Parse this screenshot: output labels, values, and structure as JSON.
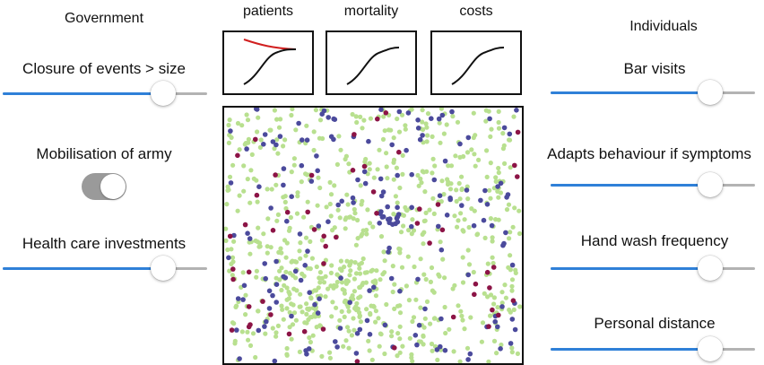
{
  "government": {
    "heading": "Government",
    "closure": {
      "label": "Closure of events > size",
      "value": 0.785
    },
    "mobilisation": {
      "label": "Mobilisation of army",
      "on": true
    },
    "healthcare": {
      "label": "Health care investments",
      "value": 0.785
    }
  },
  "individuals": {
    "heading": "Individuals",
    "bar_visits": {
      "label": "Bar visits",
      "value": 0.78
    },
    "adapts": {
      "label": "Adapts behaviour if symptoms",
      "value": 0.78
    },
    "handwash": {
      "label": "Hand wash frequency",
      "value": 0.78
    },
    "distance": {
      "label": "Personal distance",
      "value": 0.78
    }
  },
  "charts": {
    "patients": {
      "title": "patients"
    },
    "mortality": {
      "title": "mortality"
    },
    "costs": {
      "title": "costs"
    }
  },
  "colors": {
    "accent": "#2f80d8",
    "track": "#b3b3b3",
    "toggle_bg": "#9a9a9a",
    "healthy": "#b8e08f",
    "infected": "#4b4a9c",
    "sick": "#8c1446",
    "curve_red": "#d11f1f"
  }
}
